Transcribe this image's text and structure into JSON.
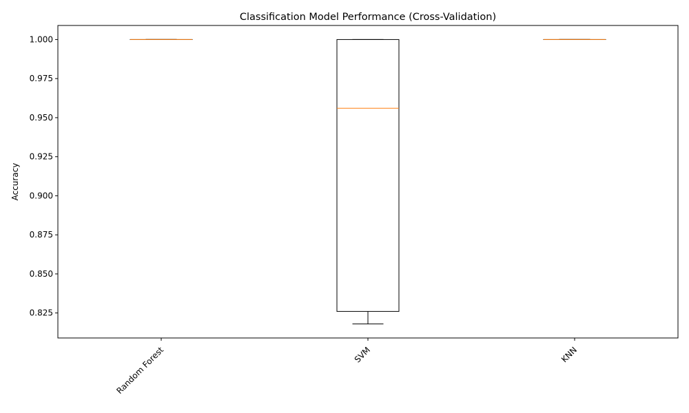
{
  "chart_data": {
    "type": "box",
    "title": "Classification Model Performance (Cross-Validation)",
    "xlabel": "",
    "ylabel": "Accuracy",
    "ylim": [
      0.809,
      1.009
    ],
    "yticks": [
      0.825,
      0.85,
      0.875,
      0.9,
      0.925,
      0.95,
      0.975,
      1.0
    ],
    "ytick_labels": [
      "0.825",
      "0.850",
      "0.875",
      "0.900",
      "0.925",
      "0.950",
      "0.975",
      "1.000"
    ],
    "xtick_rotation": 45,
    "grid": false,
    "categories": [
      "Random Forest",
      "SVM",
      "KNN"
    ],
    "boxes": [
      {
        "category": "Random Forest",
        "whisker_low": 1.0,
        "q1": 1.0,
        "median": 1.0,
        "q3": 1.0,
        "whisker_high": 1.0
      },
      {
        "category": "SVM",
        "whisker_low": 0.818,
        "q1": 0.826,
        "median": 0.956,
        "q3": 1.0,
        "whisker_high": 1.0
      },
      {
        "category": "KNN",
        "whisker_low": 1.0,
        "q1": 1.0,
        "median": 1.0,
        "q3": 1.0,
        "whisker_high": 1.0
      }
    ],
    "colors": {
      "box": "#000000",
      "median": "#ff7f0e",
      "axes": "#000000"
    }
  }
}
